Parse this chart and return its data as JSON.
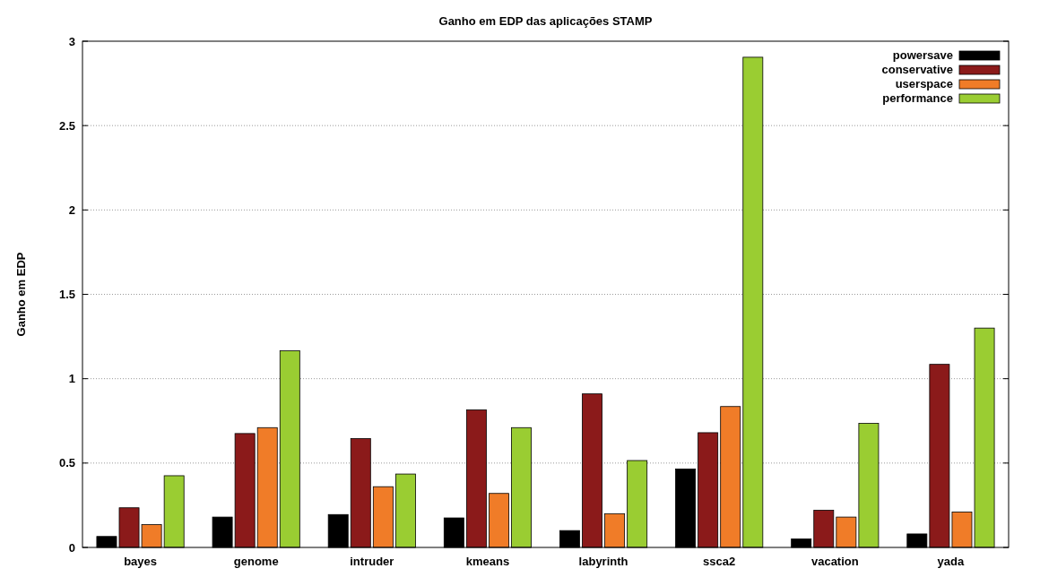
{
  "chart_data": {
    "type": "bar",
    "title": "Ganho em EDP das aplicações STAMP",
    "ylabel": "Ganho em EDP",
    "categories": [
      "bayes",
      "genome",
      "intruder",
      "kmeans",
      "labyrinth",
      "ssca2",
      "vacation",
      "yada"
    ],
    "series": [
      {
        "name": "powersave",
        "color": "#000000",
        "values": [
          0.065,
          0.18,
          0.195,
          0.175,
          0.1,
          0.465,
          0.05,
          0.08
        ]
      },
      {
        "name": "conservative",
        "color": "#8b1a1a",
        "values": [
          0.235,
          0.675,
          0.645,
          0.815,
          0.91,
          0.68,
          0.22,
          1.085
        ]
      },
      {
        "name": "userspace",
        "color": "#f07c28",
        "values": [
          0.135,
          0.71,
          0.36,
          0.32,
          0.2,
          0.835,
          0.18,
          0.21
        ]
      },
      {
        "name": "performance",
        "color": "#9acd32",
        "values": [
          0.425,
          1.165,
          0.435,
          0.71,
          0.515,
          2.905,
          0.735,
          1.3
        ]
      }
    ],
    "ylim": [
      0,
      3
    ],
    "yticks": [
      0,
      0.5,
      1,
      1.5,
      2,
      2.5,
      3
    ],
    "grid": "y",
    "legend": "top right"
  }
}
